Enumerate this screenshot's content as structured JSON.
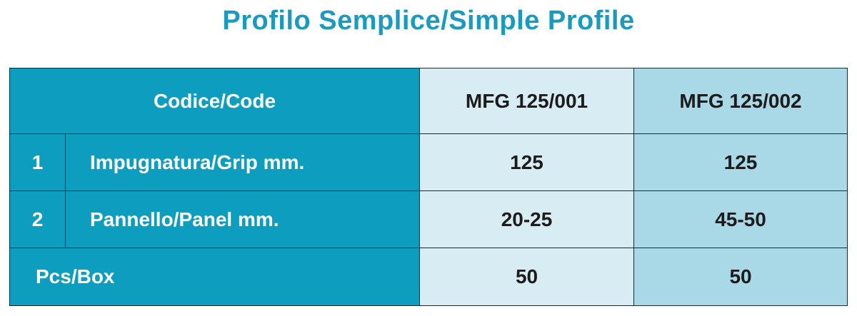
{
  "title": "Profilo Semplice/Simple Profile",
  "table": {
    "header": {
      "label": "Codice/Code",
      "col1": "MFG 125/001",
      "col2": "MFG 125/002"
    },
    "rows": [
      {
        "num": "1",
        "label": "Impugnatura/Grip mm.",
        "col1": "125",
        "col2": "125"
      },
      {
        "num": "2",
        "label": "Pannello/Panel mm.",
        "col1": "20-25",
        "col2": "45-50"
      }
    ],
    "footer": {
      "label": "Pcs/Box",
      "col1": "50",
      "col2": "50"
    }
  },
  "colors": {
    "title": "#1a9bbd",
    "header_bg": "#0d9ebf",
    "col1_bg": "#d8ecf3",
    "col2_bg": "#a9d8e6",
    "border": "#1c2a30"
  }
}
